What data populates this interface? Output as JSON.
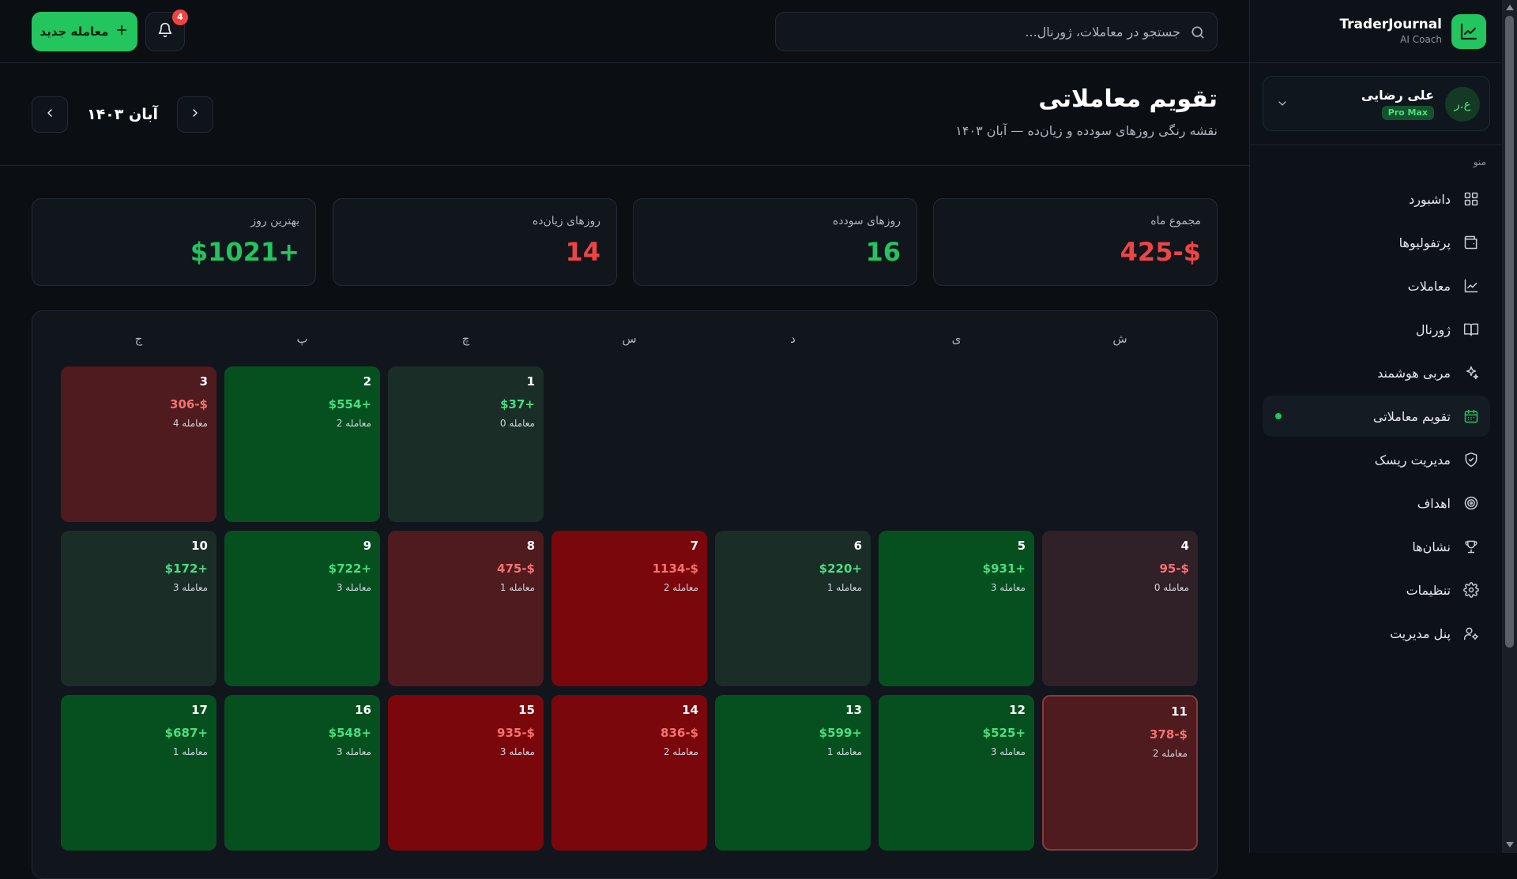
{
  "brand": {
    "title": "TraderJournal",
    "subtitle": "AI Coach"
  },
  "user": {
    "name": "علی رضایی",
    "initials": "ع.ر",
    "plan": "Pro Max"
  },
  "menu": {
    "heading": "منو",
    "items": [
      {
        "id": "dashboard",
        "label": "داشبورد",
        "icon": "grid-icon",
        "active": false
      },
      {
        "id": "portfolios",
        "label": "پرتفولیوها",
        "icon": "wallet-icon",
        "active": false
      },
      {
        "id": "trades",
        "label": "معاملات",
        "icon": "chart-line-icon",
        "active": false
      },
      {
        "id": "journal",
        "label": "ژورنال",
        "icon": "book-icon",
        "active": false
      },
      {
        "id": "ai-coach",
        "label": "مربی هوشمند",
        "icon": "sparkles-icon",
        "active": false
      },
      {
        "id": "calendar",
        "label": "تقویم معاملاتی",
        "icon": "calendar-icon",
        "active": true
      },
      {
        "id": "risk",
        "label": "مدیریت ریسک",
        "icon": "shield-icon",
        "active": false
      },
      {
        "id": "goals",
        "label": "اهداف",
        "icon": "target-icon",
        "active": false
      },
      {
        "id": "badges",
        "label": "نشان‌ها",
        "icon": "trophy-icon",
        "active": false
      },
      {
        "id": "settings",
        "label": "تنظیمات",
        "icon": "gear-icon",
        "active": false
      },
      {
        "id": "admin",
        "label": "پنل مدیریت",
        "icon": "user-cog-icon",
        "active": false
      }
    ]
  },
  "header": {
    "search_placeholder": "جستجو در معاملات، ژورنال...",
    "notification_count": "4",
    "new_trade_label": "معامله جدید"
  },
  "page": {
    "title": "تقویم معاملاتی",
    "subtitle": "نقشه رنگی روزهای سودده و زیان‌ده — آبان ۱۴۰۳",
    "month_label": "آبان ۱۴۰۳"
  },
  "stats": [
    {
      "label": "مجموع ماه",
      "value": "425-$",
      "tone": "neg"
    },
    {
      "label": "روزهای سودده",
      "value": "16",
      "tone": "pos"
    },
    {
      "label": "روزهای زیان‌ده",
      "value": "14",
      "tone": "neg"
    },
    {
      "label": "بهترین روز",
      "value": "$1021+",
      "tone": "pos"
    }
  ],
  "calendar": {
    "weekdays": [
      "ش",
      "ی",
      "د",
      "س",
      "چ",
      "پ",
      "ج"
    ],
    "days": [
      {
        "day": "1",
        "col": 4,
        "row": 0,
        "pnl": "$37+",
        "pnl_value": 37,
        "count": "0 معامله"
      },
      {
        "day": "2",
        "col": 5,
        "row": 0,
        "pnl": "$554+",
        "pnl_value": 554,
        "count": "2 معامله"
      },
      {
        "day": "3",
        "col": 6,
        "row": 0,
        "pnl": "306-$",
        "pnl_value": -306,
        "count": "4 معامله"
      },
      {
        "day": "4",
        "col": 0,
        "row": 1,
        "pnl": "95-$",
        "pnl_value": -95,
        "count": "0 معامله"
      },
      {
        "day": "5",
        "col": 1,
        "row": 1,
        "pnl": "$931+",
        "pnl_value": 931,
        "count": "3 معامله"
      },
      {
        "day": "6",
        "col": 2,
        "row": 1,
        "pnl": "$220+",
        "pnl_value": 220,
        "count": "1 معامله"
      },
      {
        "day": "7",
        "col": 3,
        "row": 1,
        "pnl": "1134-$",
        "pnl_value": -1134,
        "count": "2 معامله"
      },
      {
        "day": "8",
        "col": 4,
        "row": 1,
        "pnl": "475-$",
        "pnl_value": -475,
        "count": "1 معامله"
      },
      {
        "day": "9",
        "col": 5,
        "row": 1,
        "pnl": "$722+",
        "pnl_value": 722,
        "count": "3 معامله"
      },
      {
        "day": "10",
        "col": 6,
        "row": 1,
        "pnl": "$172+",
        "pnl_value": 172,
        "count": "3 معامله"
      },
      {
        "day": "11",
        "col": 0,
        "row": 2,
        "pnl": "378-$",
        "pnl_value": -378,
        "count": "2 معامله",
        "today": true
      },
      {
        "day": "12",
        "col": 1,
        "row": 2,
        "pnl": "$525+",
        "pnl_value": 525,
        "count": "3 معامله"
      },
      {
        "day": "13",
        "col": 2,
        "row": 2,
        "pnl": "$599+",
        "pnl_value": 599,
        "count": "1 معامله"
      },
      {
        "day": "14",
        "col": 3,
        "row": 2,
        "pnl": "836-$",
        "pnl_value": -836,
        "count": "2 معامله"
      },
      {
        "day": "15",
        "col": 4,
        "row": 2,
        "pnl": "935-$",
        "pnl_value": -935,
        "count": "3 معامله"
      },
      {
        "day": "16",
        "col": 5,
        "row": 2,
        "pnl": "$548+",
        "pnl_value": 548,
        "count": "3 معامله"
      },
      {
        "day": "17",
        "col": 6,
        "row": 2,
        "pnl": "$687+",
        "pnl_value": 687,
        "count": "1 معامله"
      }
    ]
  },
  "colors": {
    "accent": "#22c55e",
    "profit": "#22c55e",
    "loss": "#ef4444",
    "background": "#0b0f14"
  }
}
